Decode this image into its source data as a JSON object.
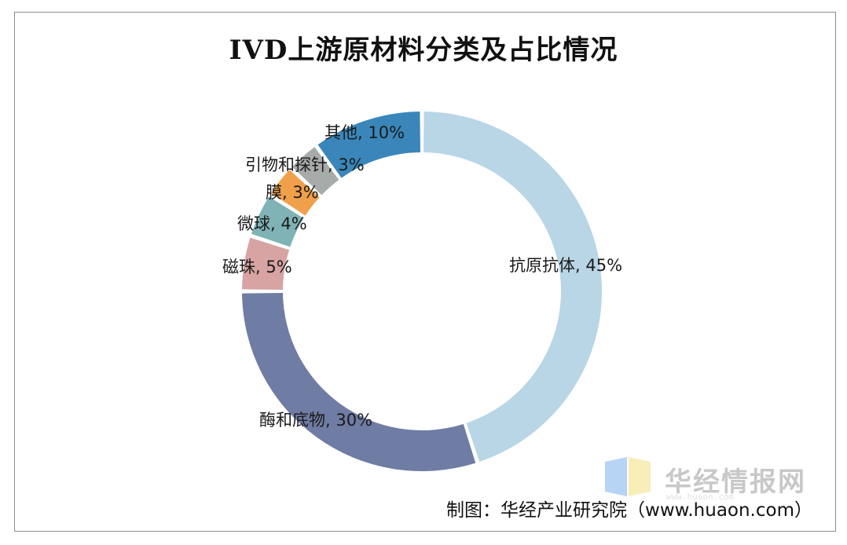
{
  "chart_data": {
    "type": "pie",
    "variant": "donut",
    "title": "IVD上游原材料分类及占比情况",
    "categories": [
      "抗原抗体",
      "酶和底物",
      "磁珠",
      "微球",
      "膜",
      "引物和探针",
      "其他"
    ],
    "values": [
      45,
      30,
      5,
      4,
      3,
      3,
      10
    ],
    "unit": "%",
    "labels": [
      "抗原抗体, 45%",
      "酶和底物, 30%",
      "磁珠, 5%",
      "微球, 4%",
      "膜, 3%",
      "引物和探针, 3%",
      "其他, 10%"
    ],
    "colors": [
      "#b9d6e6",
      "#6f7ca4",
      "#d8a3a3",
      "#7fb3b5",
      "#f0a04b",
      "#a7abaa",
      "#3a86ba"
    ],
    "legend": "none"
  },
  "watermark": {
    "text": "华经情报网",
    "sub": "www.huaon.com"
  },
  "source": "制图：华经产业研究院（www.huaon.com）"
}
